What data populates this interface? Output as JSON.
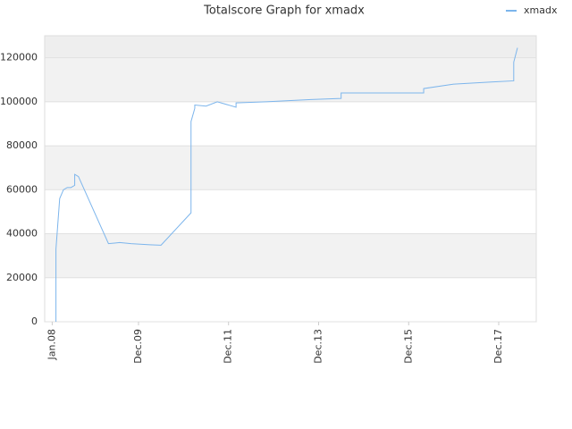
{
  "chart_data": {
    "type": "line",
    "title": "Totalscore Graph for xmadx",
    "x": [
      "2008-02",
      "2008-02",
      "2008-02",
      "2008-03",
      "2008-04",
      "2008-05",
      "2008-06",
      "2008-07",
      "2008-07",
      "2008-08",
      "2009-04",
      "2009-07",
      "2009-10",
      "2010-03",
      "2010-06",
      "2011-02",
      "2011-02",
      "2011-02",
      "2011-03",
      "2011-03",
      "2011-06",
      "2011-09",
      "2012-02",
      "2012-02",
      "2012-10",
      "2013-10",
      "2014-06",
      "2014-06",
      "2016-04",
      "2016-04",
      "2016-12",
      "2017-10",
      "2018-04",
      "2018-04",
      "2018-05"
    ],
    "series": [
      {
        "name": "xmadx",
        "color": "#7cb5ec",
        "values": [
          0,
          27000,
          33000,
          56000,
          60000,
          61000,
          61000,
          62000,
          67000,
          66000,
          35500,
          36000,
          35500,
          35000,
          34800,
          49500,
          82000,
          91000,
          97000,
          98500,
          98000,
          100000,
          97500,
          99500,
          100000,
          101000,
          101500,
          104000,
          104000,
          106000,
          108000,
          109000,
          109500,
          118000,
          124500
        ]
      }
    ],
    "xlim": [
      "2007-11",
      "2018-10"
    ],
    "xticks": [
      {
        "value": "2008-01",
        "label": "Jan.08"
      },
      {
        "value": "2009-12",
        "label": "Dec.09"
      },
      {
        "value": "2011-12",
        "label": "Dec.11"
      },
      {
        "value": "2013-12",
        "label": "Dec.13"
      },
      {
        "value": "2015-12",
        "label": "Dec.15"
      },
      {
        "value": "2017-12",
        "label": "Dec.17"
      }
    ],
    "ylim": [
      0,
      130000
    ],
    "yticks": [
      0,
      20000,
      40000,
      60000,
      80000,
      100000,
      120000
    ],
    "grid": true,
    "legend": "top-right"
  }
}
